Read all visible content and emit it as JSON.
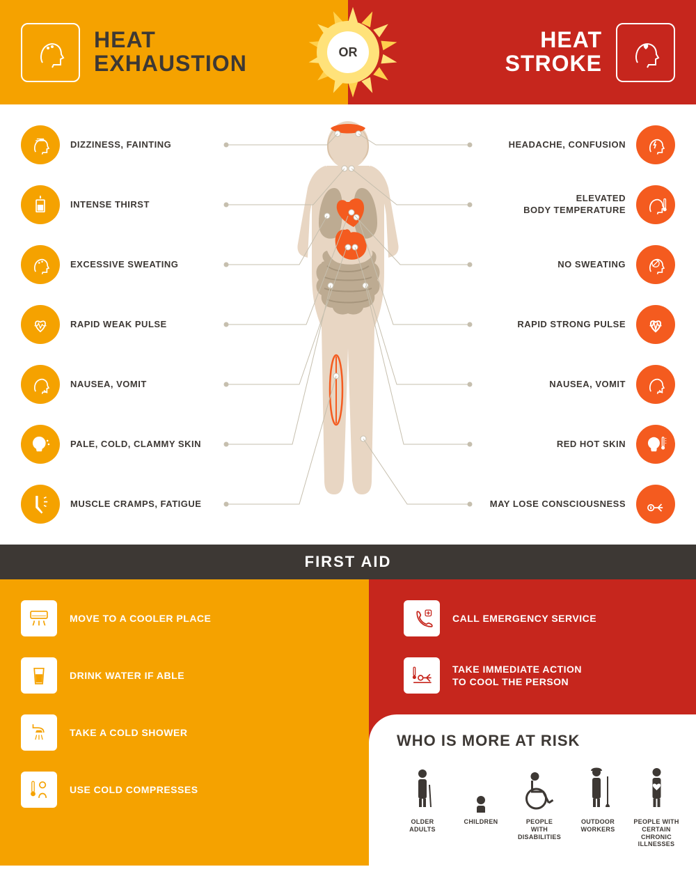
{
  "header": {
    "left_title_line1": "HEAT",
    "left_title_line2": "EXHAUSTION",
    "or_label": "OR",
    "right_title_line1": "HEAT",
    "right_title_line2": "STROKE",
    "left_bg": "#f5a200",
    "right_bg": "#c6261d",
    "sun_color": "#ffe27a",
    "sun_ray_alt": "#ffd04d",
    "text_dark": "#3d3834"
  },
  "symptoms": {
    "left_icon_bg": "#f5a200",
    "right_icon_bg": "#f45b1f",
    "leader_color": "#c6bfae",
    "left": [
      {
        "label": "DIZZINESS, FAINTING",
        "icon": "head-dizzy"
      },
      {
        "label": "INTENSE THIRST",
        "icon": "cup-thirst"
      },
      {
        "label": "EXCESSIVE SWEATING",
        "icon": "head-sweat"
      },
      {
        "label": "RAPID WEAK PULSE",
        "icon": "heart-weak"
      },
      {
        "label": "NAUSEA, VOMIT",
        "icon": "head-vomit"
      },
      {
        "label": "PALE, COLD, CLAMMY SKIN",
        "icon": "head-cold"
      },
      {
        "label": "MUSCLE CRAMPS, FATIGUE",
        "icon": "leg-cramp"
      }
    ],
    "right": [
      {
        "label": "HEADACHE, CONFUSION",
        "icon": "head-bolt"
      },
      {
        "label": "ELEVATED\nBODY TEMPERATURE",
        "icon": "head-temp"
      },
      {
        "label": "NO SWEATING",
        "icon": "no-sweat"
      },
      {
        "label": "RAPID STRONG PULSE",
        "icon": "heart-strong"
      },
      {
        "label": "NAUSEA, VOMIT",
        "icon": "head-vomit"
      },
      {
        "label": "RED HOT SKIN",
        "icon": "head-hot"
      },
      {
        "label": "MAY LOSE CONSCIOUSNESS",
        "icon": "person-down"
      }
    ],
    "body_colors": {
      "skin": "#e8d6c3",
      "skin_dark": "#d9c2a8",
      "organ_light": "#b5a38a",
      "organ_orange": "#f45b1f",
      "brain": "#f45b1f",
      "muscle": "#f45b1f"
    }
  },
  "firstaid": {
    "bar_label": "FIRST AID",
    "bar_bg": "#3d3834",
    "left_bg": "#f5a200",
    "right_bg": "#c6261d",
    "left": [
      {
        "label": "MOVE TO A COOLER PLACE",
        "icon": "ac-unit"
      },
      {
        "label": "DRINK WATER IF ABLE",
        "icon": "glass-water"
      },
      {
        "label": "TAKE A COLD SHOWER",
        "icon": "shower"
      },
      {
        "label": "USE COLD COMPRESSES",
        "icon": "thermo-person"
      }
    ],
    "right": [
      {
        "label": "CALL EMERGENCY SERVICE",
        "icon": "phone-plus"
      },
      {
        "label": "TAKE IMMEDIATE ACTION\nTO COOL THE PERSON",
        "icon": "person-lying"
      }
    ]
  },
  "risk": {
    "title": "WHO IS MORE AT RISK",
    "items": [
      {
        "label": "OLDER\nADULTS",
        "icon": "elderly"
      },
      {
        "label": "CHILDREN",
        "icon": "child"
      },
      {
        "label": "PEOPLE\nWITH DISABILITIES",
        "icon": "wheelchair"
      },
      {
        "label": "OUTDOOR\nWORKERS",
        "icon": "worker"
      },
      {
        "label": "PEOPLE WITH CERTAIN\nCHRONIC ILLNESSES",
        "icon": "chronic"
      }
    ],
    "fig_color": "#3d3834"
  }
}
